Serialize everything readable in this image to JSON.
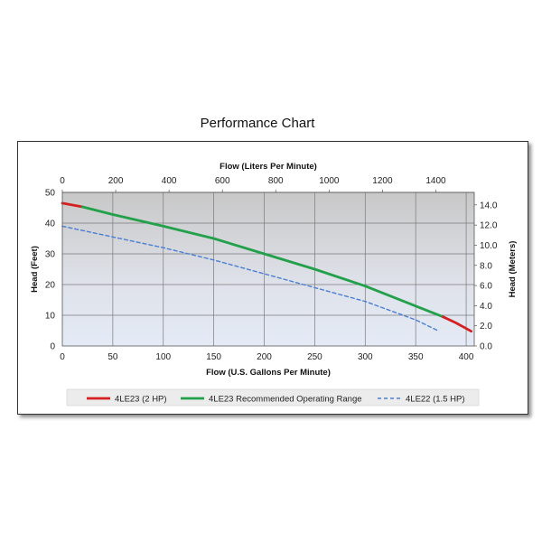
{
  "chart_data": {
    "type": "line",
    "title": "Performance Chart",
    "xlabel": "Flow (U.S. Gallons Per Minute)",
    "x2label": "Flow (Liters Per Minute)",
    "ylabel": "Head (Feet)",
    "y2label": "Head (Meters)",
    "xlim": [
      0,
      408
    ],
    "ylim": [
      0,
      50
    ],
    "x2lim": [
      0,
      1544
    ],
    "y2lim": [
      0,
      15.24
    ],
    "xticks": [
      "0",
      "50",
      "100",
      "150",
      "200",
      "250",
      "300",
      "350",
      "400"
    ],
    "yticks": [
      "0",
      "10",
      "20",
      "30",
      "40",
      "50"
    ],
    "x2ticks": [
      "0",
      "200",
      "400",
      "600",
      "800",
      "1000",
      "1200",
      "1400"
    ],
    "y2ticks": [
      "0.0",
      "2.0",
      "4.0",
      "6.0",
      "8.0",
      "10.0",
      "12.0",
      "14.0"
    ],
    "grid": true,
    "legend_position": "bottom",
    "series": [
      {
        "name": "4LE23 (2 HP)",
        "color": "#d42020",
        "style": "solid",
        "x": [
          0,
          20
        ],
        "y": [
          46.5,
          45.3
        ]
      },
      {
        "name": "4LE23 Recommended Operating Range",
        "color": "#22a04a",
        "style": "solid",
        "x": [
          20,
          50,
          100,
          150,
          200,
          250,
          300,
          350,
          377
        ],
        "y": [
          45.3,
          42.8,
          39.0,
          35.0,
          30.0,
          25.0,
          19.5,
          13.0,
          9.5
        ]
      },
      {
        "name": "4LE22 (1.5 HP)",
        "color": "#4a7fd4",
        "style": "dashed",
        "x": [
          0,
          50,
          100,
          150,
          200,
          250,
          300,
          350,
          372
        ],
        "y": [
          39.0,
          35.5,
          32.0,
          28.0,
          23.5,
          19.0,
          14.5,
          8.5,
          5.0
        ]
      },
      {
        "name": "",
        "color": "#d42020",
        "style": "solid",
        "x": [
          377,
          390,
          405
        ],
        "y": [
          9.5,
          7.5,
          4.8
        ]
      }
    ]
  }
}
